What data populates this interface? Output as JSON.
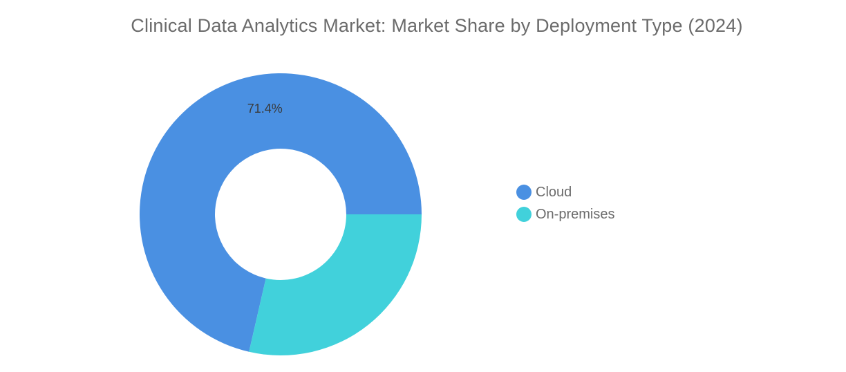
{
  "chart_data": {
    "type": "pie",
    "variant": "donut",
    "title": "Clinical Data Analytics Market: Market Share by Deployment Type (2024)",
    "categories": [
      "Cloud",
      "On-premises"
    ],
    "values": [
      71.4,
      28.6
    ],
    "data_labels": [
      "71.4%",
      ""
    ],
    "colors": [
      "#4a90e2",
      "#41d1db"
    ],
    "legend_position": "right"
  }
}
